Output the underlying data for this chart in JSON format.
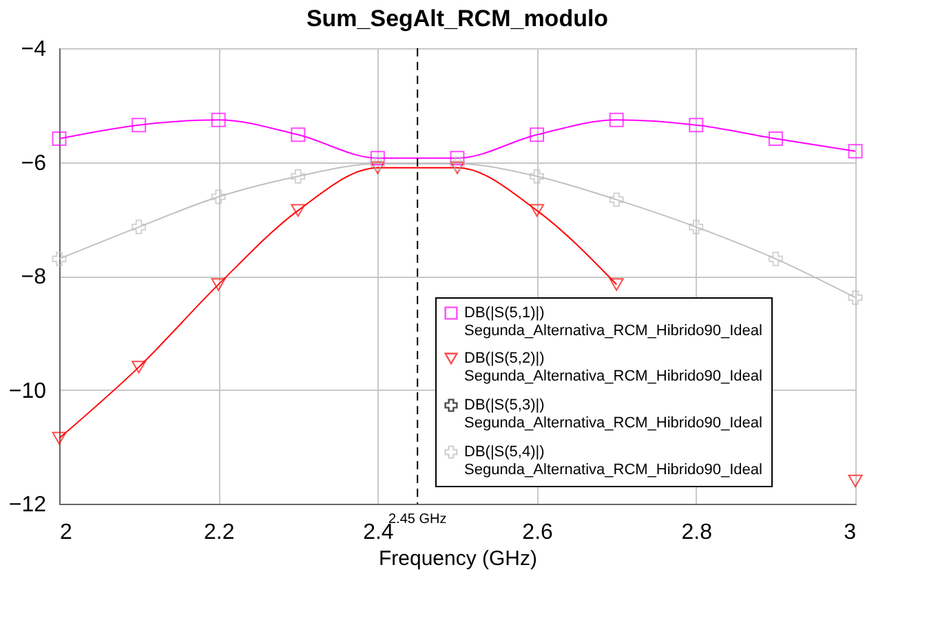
{
  "chart_data": {
    "type": "line",
    "title": "Sum_SegAlt_RCM_modulo",
    "xlabel": "Frequency (GHz)",
    "x": [
      2.0,
      2.1,
      2.2,
      2.3,
      2.4,
      2.5,
      2.6,
      2.7,
      2.8,
      2.9,
      3.0
    ],
    "series": [
      {
        "name": "DB(|S(5,1)|) Segunda_Alternativa_RCM_Hibrido90_Ideal",
        "color": "#ff00ff",
        "marker": "square",
        "values": [
          -5.59,
          -5.35,
          -5.26,
          -5.52,
          -5.93,
          -5.93,
          -5.52,
          -5.26,
          -5.35,
          -5.59,
          -5.81
        ]
      },
      {
        "name": "DB(|S(5,2)|) Segunda_Alternativa_RCM_Hibrido90_Ideal",
        "color": "#ff0000",
        "marker": "triangle",
        "values": [
          -10.85,
          -9.6,
          -8.15,
          -6.85,
          -6.1,
          -6.1,
          -6.85,
          -8.15,
          null,
          null,
          -11.6
        ]
      },
      {
        "name": "DB(|S(5,3)|) Segunda_Alternativa_RCM_Hibrido90_Ideal",
        "color": "#000000",
        "marker": "cross",
        "values": [
          null,
          null,
          null,
          null,
          null,
          null,
          null,
          null,
          null,
          null,
          null
        ]
      },
      {
        "name": "DB(|S(5,4)|) Segunda_Alternativa_RCM_Hibrido90_Ideal",
        "color": "#c0c0c0",
        "marker": "cross",
        "values": [
          -7.7,
          -7.14,
          -6.61,
          -6.25,
          -6.03,
          -6.03,
          -6.25,
          -6.66,
          -7.14,
          -7.7,
          -8.38
        ]
      }
    ],
    "xlim": [
      2,
      3
    ],
    "xticks": [
      2,
      2.2,
      2.4,
      2.6,
      2.8,
      3
    ],
    "ylim": [
      -12,
      -4
    ],
    "yticks": [
      -4,
      -6,
      -8,
      -10,
      -12
    ],
    "ref_lines": [
      {
        "axis": "x",
        "value": 2.45,
        "label": "2.45 GHz",
        "color": "#000000",
        "line_style": "dashed"
      }
    ],
    "grid": true,
    "legend": "bottom right",
    "line_style": "solid"
  }
}
